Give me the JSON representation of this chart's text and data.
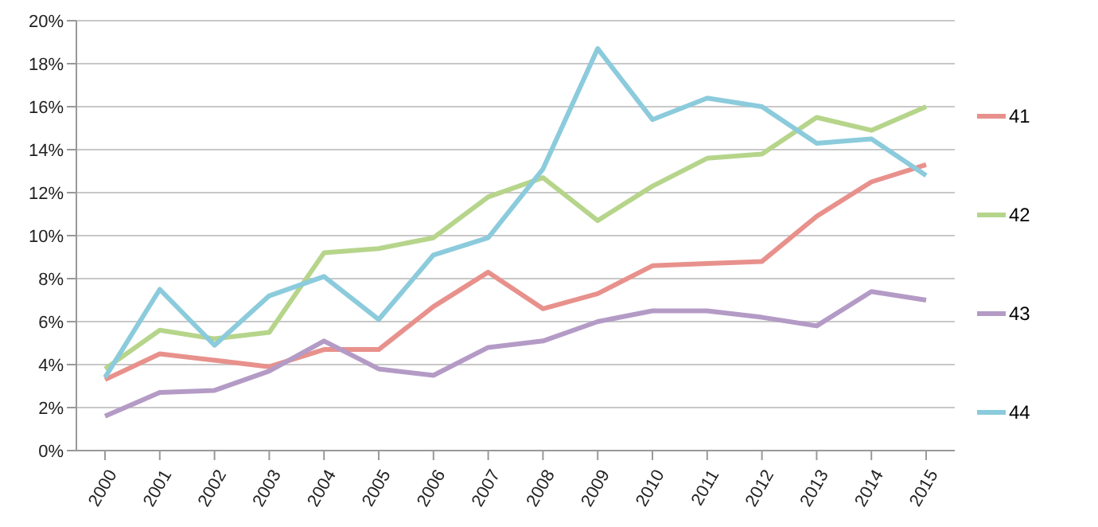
{
  "chart_data": {
    "type": "line",
    "categories": [
      "2000",
      "2001",
      "2002",
      "2003",
      "2004",
      "2005",
      "2006",
      "2007",
      "2008",
      "2009",
      "2010",
      "2011",
      "2012",
      "2013",
      "2014",
      "2015"
    ],
    "series": [
      {
        "name": "41",
        "color": "#e8918c",
        "values": [
          3.3,
          4.5,
          4.2,
          3.9,
          4.7,
          4.7,
          6.7,
          8.3,
          6.6,
          7.3,
          8.6,
          8.7,
          8.8,
          10.9,
          12.5,
          13.3
        ]
      },
      {
        "name": "42",
        "color": "#b6d58b",
        "values": [
          3.8,
          5.6,
          5.2,
          5.5,
          9.2,
          9.4,
          9.9,
          11.8,
          12.7,
          10.7,
          12.3,
          13.6,
          13.8,
          15.5,
          14.9,
          16.0
        ]
      },
      {
        "name": "43",
        "color": "#b49bc6",
        "values": [
          1.6,
          2.7,
          2.8,
          3.7,
          5.1,
          3.8,
          3.5,
          4.8,
          5.1,
          6.0,
          6.5,
          6.5,
          6.2,
          5.8,
          7.4,
          7.0
        ]
      },
      {
        "name": "44",
        "color": "#8bcbdc",
        "values": [
          3.4,
          7.5,
          4.9,
          7.2,
          8.1,
          6.1,
          9.1,
          9.9,
          13.1,
          18.7,
          15.4,
          16.4,
          16.0,
          14.3,
          14.5,
          12.8
        ]
      }
    ],
    "ylim": [
      0,
      20
    ],
    "yticks": [
      {
        "value": 0,
        "label": "0%"
      },
      {
        "value": 2,
        "label": "2%"
      },
      {
        "value": 4,
        "label": "4%"
      },
      {
        "value": 6,
        "label": "6%"
      },
      {
        "value": 8,
        "label": "8%"
      },
      {
        "value": 10,
        "label": "10%"
      },
      {
        "value": 12,
        "label": "12%"
      },
      {
        "value": 14,
        "label": "14%"
      },
      {
        "value": 16,
        "label": "16%"
      },
      {
        "value": 18,
        "label": "18%"
      },
      {
        "value": 20,
        "label": "20%"
      }
    ],
    "grid": "y",
    "legend": "right",
    "marker": "none",
    "line_style": "solid"
  }
}
